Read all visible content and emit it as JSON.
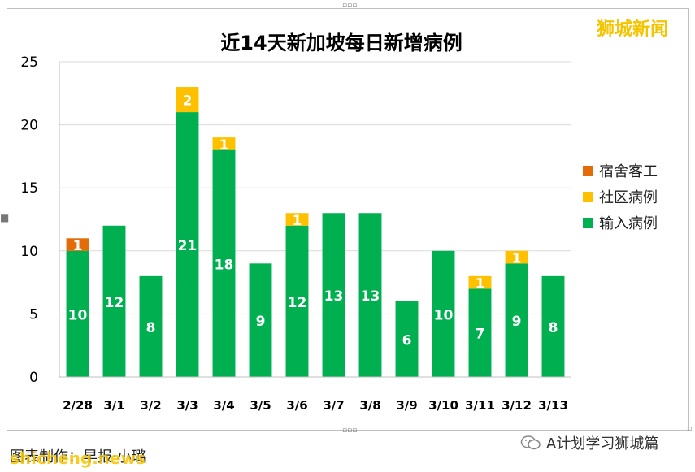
{
  "watermark": "狮城新闻",
  "caption": "图表制作：早报·小璐",
  "caption_site": "shicheng.news",
  "source": "A计划学习狮城篇",
  "colors": {
    "dorm": "#e36c09",
    "community": "#ffc000",
    "imported": "#00b050"
  },
  "chart_data": {
    "type": "bar",
    "stacked": true,
    "title": "近14天新加坡每日新增病例",
    "categories": [
      "2/28",
      "3/1",
      "3/2",
      "3/3",
      "3/4",
      "3/5",
      "3/6",
      "3/7",
      "3/8",
      "3/9",
      "3/10",
      "3/11",
      "3/12",
      "3/13"
    ],
    "series": [
      {
        "name": "输入病例",
        "color": "#00b050",
        "values": [
          10,
          12,
          8,
          21,
          18,
          9,
          12,
          13,
          13,
          6,
          10,
          7,
          9,
          8
        ]
      },
      {
        "name": "社区病例",
        "color": "#ffc000",
        "values": [
          0,
          0,
          0,
          2,
          1,
          0,
          1,
          0,
          0,
          0,
          0,
          1,
          1,
          0
        ]
      },
      {
        "name": "宿舍客工",
        "color": "#e36c09",
        "values": [
          1,
          0,
          0,
          0,
          0,
          0,
          0,
          0,
          0,
          0,
          0,
          0,
          0,
          0
        ]
      }
    ],
    "legend_order": [
      "宿舍客工",
      "社区病例",
      "输入病例"
    ],
    "ylim": [
      0,
      25
    ],
    "yticks": [
      0,
      5,
      10,
      15,
      20,
      25
    ],
    "grid": true,
    "legend_position": "right"
  }
}
